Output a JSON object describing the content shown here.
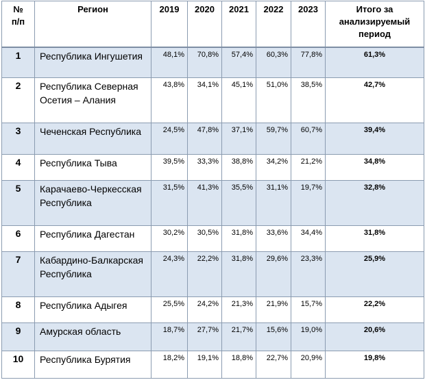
{
  "headers": {
    "num": "№\nп/п",
    "region": "Регион",
    "y2019": "2019",
    "y2020": "2020",
    "y2021": "2021",
    "y2022": "2022",
    "y2023": "2023",
    "total": "Итого за анализируемый период"
  },
  "rows": [
    {
      "n": "1",
      "region": "Республика Ингушетия",
      "v2019": "48,1%",
      "v2020": "70,8%",
      "v2021": "57,4%",
      "v2022": "60,3%",
      "v2023": "77,8%",
      "total": "61,3%"
    },
    {
      "n": "2",
      "region": "Республика Северная Осетия – Алания",
      "v2019": "43,8%",
      "v2020": "34,1%",
      "v2021": "45,1%",
      "v2022": "51,0%",
      "v2023": "38,5%",
      "total": "42,7%"
    },
    {
      "n": "3",
      "region": "Чеченская Республика",
      "v2019": "24,5%",
      "v2020": "47,8%",
      "v2021": "37,1%",
      "v2022": "59,7%",
      "v2023": "60,7%",
      "total": "39,4%"
    },
    {
      "n": "4",
      "region": "Республика Тыва",
      "v2019": "39,5%",
      "v2020": "33,3%",
      "v2021": "38,8%",
      "v2022": "34,2%",
      "v2023": "21,2%",
      "total": "34,8%"
    },
    {
      "n": "5",
      "region": "Карачаево-Черкесская Республика",
      "v2019": "31,5%",
      "v2020": "41,3%",
      "v2021": "35,5%",
      "v2022": "31,1%",
      "v2023": "19,7%",
      "total": "32,8%"
    },
    {
      "n": "6",
      "region": "Республика Дагестан",
      "v2019": "30,2%",
      "v2020": "30,5%",
      "v2021": "31,8%",
      "v2022": "33,6%",
      "v2023": "34,4%",
      "total": "31,8%"
    },
    {
      "n": "7",
      "region": "Кабардино-Балкарская Республика",
      "v2019": "24,3%",
      "v2020": "22,2%",
      "v2021": "31,8%",
      "v2022": "29,6%",
      "v2023": "23,3%",
      "total": "25,9%"
    },
    {
      "n": "8",
      "region": "Республика Адыгея",
      "v2019": "25,5%",
      "v2020": "24,2%",
      "v2021": "21,3%",
      "v2022": "21,9%",
      "v2023": "15,7%",
      "total": "22,2%"
    },
    {
      "n": "9",
      "region": "Амурская область",
      "v2019": "18,7%",
      "v2020": "27,7%",
      "v2021": "21,7%",
      "v2022": "15,6%",
      "v2023": "19,0%",
      "total": "20,6%"
    },
    {
      "n": "10",
      "region": "Республика Бурятия",
      "v2019": "18,2%",
      "v2020": "19,1%",
      "v2021": "18,8%",
      "v2022": "22,7%",
      "v2023": "20,9%",
      "total": "19,8%"
    }
  ]
}
